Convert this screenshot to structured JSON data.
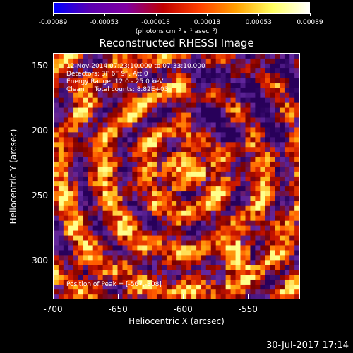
{
  "colorbar": {
    "ticks": [
      "-0.00089",
      "-0.00053",
      "-0.00018",
      "0.00018",
      "0.00053",
      "0.00089"
    ],
    "label": "(photons cm⁻² s⁻¹ asec⁻²)",
    "colors": [
      "#0000ff",
      "#5a00b0",
      "#8000a0",
      "#c00000",
      "#ff4000",
      "#ffa000",
      "#ffff60",
      "#ffffff"
    ]
  },
  "title": "Reconstructed RHESSI Image",
  "annotations": {
    "time_range": "12-Nov-2014 07:23:10.000 to 07:33:10.000",
    "detectors": "Detectors: 3F 6F 9F, Att 0",
    "energy_range": "Energy Range: 12.0 - 25.0 keV",
    "clean_counts": "Clean     Total counts: 8.82E+03",
    "peak_position": "Position of Peak = [-567,-308]"
  },
  "chart_data": {
    "type": "heatmap",
    "title": "Reconstructed RHESSI Image",
    "xlabel": "Heliocentric X (arcsec)",
    "ylabel": "Heliocentric Y (arcsec)",
    "xlim": [
      -700,
      -510
    ],
    "ylim": [
      -330,
      -140
    ],
    "xticks": [
      "-700",
      "-650",
      "-600",
      "-550"
    ],
    "yticks": [
      "-150",
      "-200",
      "-250",
      "-300"
    ],
    "zlim": [
      -0.00089,
      0.00089
    ],
    "colorbar_unit": "photons cm⁻² s⁻¹ asec⁻²",
    "peak": [
      -567,
      -308
    ]
  },
  "footer": {
    "date": "30-Jul-2017 17:14"
  }
}
